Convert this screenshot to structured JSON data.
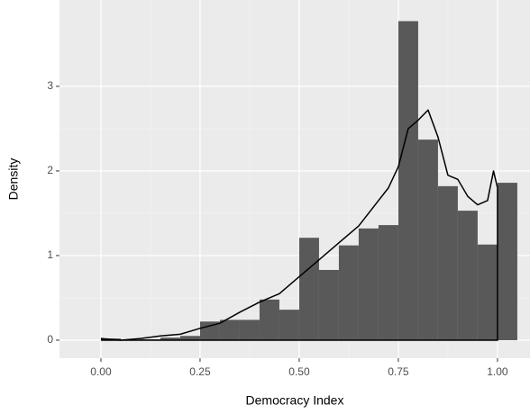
{
  "chart_data": {
    "type": "histogram",
    "x_label": "Democracy Index",
    "y_label": "Density",
    "bins": [
      0,
      0.05,
      0.1,
      0.15,
      0.2,
      0.25,
      0.3,
      0.35,
      0.4,
      0.45,
      0.5,
      0.55,
      0.6,
      0.65,
      0.7,
      0.75,
      0.8,
      0.85,
      0.9,
      0.95,
      1.0,
      1.05
    ],
    "values": [
      0.02,
      0.0,
      0.01,
      0.03,
      0.05,
      0.22,
      0.24,
      0.24,
      0.48,
      0.36,
      1.21,
      0.83,
      1.12,
      1.32,
      1.36,
      3.77,
      2.37,
      1.82,
      1.53,
      1.13,
      1.86
    ],
    "color": "#595959",
    "density": {
      "x": [
        0,
        0.05,
        0.1,
        0.15,
        0.2,
        0.25,
        0.3,
        0.35,
        0.4,
        0.45,
        0.5,
        0.55,
        0.6,
        0.65,
        0.7,
        0.725,
        0.75,
        0.775,
        0.8,
        0.825,
        0.85,
        0.875,
        0.9,
        0.925,
        0.95,
        0.975,
        0.99,
        1.0
      ],
      "values": [
        0.02,
        0.0,
        0.02,
        0.05,
        0.07,
        0.14,
        0.2,
        0.33,
        0.45,
        0.55,
        0.75,
        0.95,
        1.15,
        1.35,
        1.65,
        1.8,
        2.05,
        2.5,
        2.6,
        2.72,
        2.4,
        1.95,
        1.9,
        1.7,
        1.6,
        1.65,
        2.0,
        1.8
      ],
      "color": "#000000"
    },
    "xlim": [
      -0.1045,
      1.082
    ],
    "ylim": [
      -0.213,
      4.02
    ],
    "xticks": [
      {
        "value": 0,
        "label": "0.00"
      },
      {
        "value": 0.25,
        "label": "0.25"
      },
      {
        "value": 0.5,
        "label": "0.50"
      },
      {
        "value": 0.75,
        "label": "0.75"
      },
      {
        "value": 1.0,
        "label": "1.00"
      }
    ],
    "yticks": [
      0,
      1,
      2,
      3
    ],
    "grid": true
  }
}
